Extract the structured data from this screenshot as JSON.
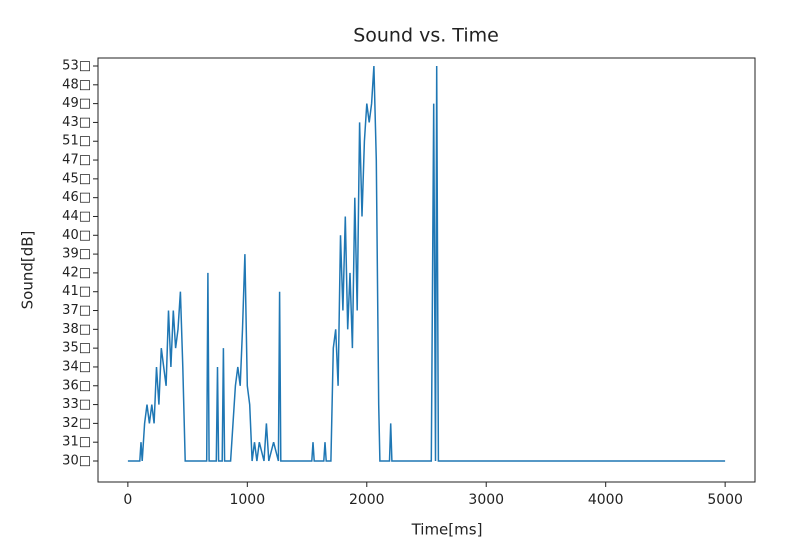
{
  "chart_data": {
    "type": "line",
    "title": "Sound vs. Time",
    "xlabel": "Time[ms]",
    "ylabel": "Sound[dB]",
    "xlim": [
      -250,
      5250
    ],
    "xticks": [
      0,
      1000,
      2000,
      3000,
      4000,
      5000
    ],
    "ycategories": [
      "30□",
      "31□",
      "32□",
      "33□",
      "36□",
      "34□",
      "35□",
      "38□",
      "37□",
      "41□",
      "42□",
      "39□",
      "40□",
      "44□",
      "46□",
      "45□",
      "47□",
      "51□",
      "43□",
      "49□",
      "48□",
      "53□"
    ],
    "x": [
      0,
      100,
      110,
      120,
      140,
      160,
      180,
      200,
      220,
      240,
      260,
      280,
      300,
      320,
      340,
      360,
      380,
      400,
      420,
      440,
      460,
      480,
      500,
      660,
      670,
      680,
      740,
      750,
      760,
      790,
      800,
      810,
      860,
      880,
      900,
      920,
      940,
      960,
      980,
      1000,
      1020,
      1040,
      1060,
      1080,
      1100,
      1140,
      1160,
      1180,
      1220,
      1260,
      1270,
      1280,
      1540,
      1550,
      1560,
      1640,
      1650,
      1660,
      1700,
      1720,
      1740,
      1760,
      1780,
      1800,
      1820,
      1840,
      1860,
      1880,
      1900,
      1920,
      1940,
      1960,
      1980,
      2000,
      2020,
      2040,
      2060,
      2080,
      2100,
      2110,
      2190,
      2200,
      2210,
      2540,
      2560,
      2575,
      2585,
      2600,
      5000
    ],
    "series": [
      {
        "name": "Sound",
        "color": "#1f77b4",
        "values": [
          "30□",
          "30□",
          "31□",
          "30□",
          "32□",
          "33□",
          "32□",
          "33□",
          "32□",
          "34□",
          "33□",
          "35□",
          "34□",
          "36□",
          "37□",
          "34□",
          "37□",
          "35□",
          "38□",
          "41□",
          "34□",
          "30□",
          "30□",
          "30□",
          "42□",
          "30□",
          "30□",
          "34□",
          "30□",
          "30□",
          "35□",
          "30□",
          "30□",
          "32□",
          "36□",
          "34□",
          "36□",
          "38□",
          "39□",
          "36□",
          "33□",
          "30□",
          "31□",
          "30□",
          "31□",
          "30□",
          "32□",
          "30□",
          "31□",
          "30□",
          "41□",
          "30□",
          "30□",
          "31□",
          "30□",
          "30□",
          "31□",
          "30□",
          "30□",
          "35□",
          "38□",
          "36□",
          "40□",
          "37□",
          "44□",
          "38□",
          "42□",
          "35□",
          "46□",
          "37□",
          "43□",
          "44□",
          "51□",
          "49□",
          "43□",
          "49□",
          "53□",
          "47□",
          "33□",
          "30□",
          "30□",
          "32□",
          "30□",
          "30□",
          "49□",
          "30□",
          "53□",
          "30□",
          "30□"
        ]
      }
    ]
  }
}
